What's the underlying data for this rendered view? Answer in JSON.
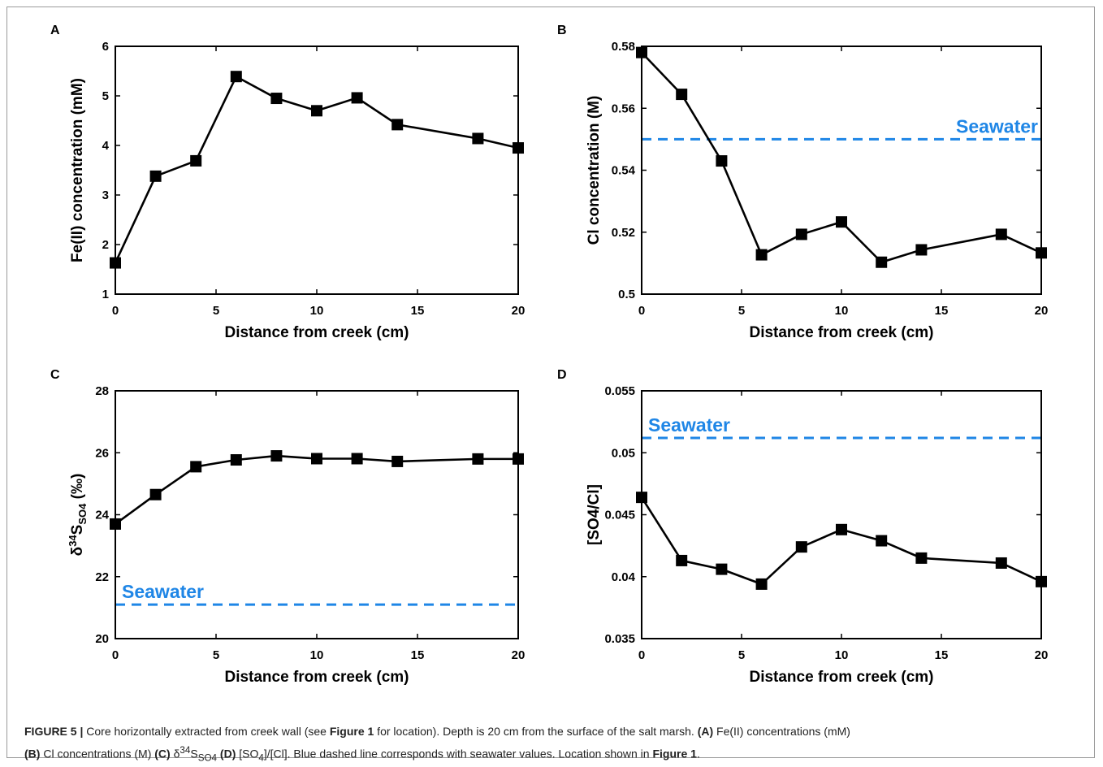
{
  "chart_data": [
    {
      "type": "line",
      "panel_label": "A",
      "xlabel": "Distance from creek (cm)",
      "ylabel": "Fe(II) concentration (mM)",
      "xlim": [
        0,
        20
      ],
      "ylim": [
        1,
        6
      ],
      "xticks": [
        0,
        5,
        10,
        15,
        20
      ],
      "xtick_labels": [
        "0",
        "5",
        "10",
        "15",
        "20"
      ],
      "yticks": [
        1,
        2,
        3,
        4,
        5,
        6
      ],
      "ytick_labels": [
        "1",
        "2",
        "3",
        "4",
        "5",
        "6"
      ],
      "x": [
        0,
        2,
        4,
        6,
        8,
        10,
        12,
        14,
        18,
        20
      ],
      "series": [
        {
          "values": [
            1.63,
            3.38,
            3.69,
            5.39,
            4.95,
            4.7,
            4.96,
            4.42,
            4.14,
            3.95
          ]
        }
      ],
      "reference": null
    },
    {
      "type": "line",
      "panel_label": "B",
      "xlabel": "Distance from creek (cm)",
      "ylabel": "Cl concentration (M)",
      "xlim": [
        0,
        20
      ],
      "ylim": [
        0.5,
        0.58
      ],
      "xticks": [
        0,
        5,
        10,
        15,
        20
      ],
      "xtick_labels": [
        "0",
        "5",
        "10",
        "15",
        "20"
      ],
      "yticks": [
        0.5,
        0.52,
        0.54,
        0.56,
        0.58
      ],
      "ytick_labels": [
        "0.5",
        "0.52",
        "0.54",
        "0.56",
        "0.58"
      ],
      "x": [
        0,
        2,
        4,
        6,
        8,
        10,
        12,
        14,
        18,
        20
      ],
      "series": [
        {
          "values": [
            0.578,
            0.5645,
            0.543,
            0.5127,
            0.5193,
            0.5233,
            0.5103,
            0.5143,
            0.5193,
            0.5133
          ]
        }
      ],
      "reference": {
        "label": "Seawater",
        "value": 0.55,
        "label_anchor": "end"
      }
    },
    {
      "type": "line",
      "panel_label": "C",
      "xlabel": "Distance from creek (cm)",
      "ylabel": "δ34SSO4 (‰)",
      "ylabel_parts": {
        "prefix": "δ",
        "sup": "34",
        "main": "S",
        "sub": "SO4",
        "suffix": " (‰)"
      },
      "xlim": [
        0,
        20
      ],
      "ylim": [
        20,
        28
      ],
      "xticks": [
        0,
        5,
        10,
        15,
        20
      ],
      "xtick_labels": [
        "0",
        "5",
        "10",
        "15",
        "20"
      ],
      "yticks": [
        20,
        22,
        24,
        26,
        28
      ],
      "ytick_labels": [
        "20",
        "22",
        "24",
        "26",
        "28"
      ],
      "x": [
        0,
        2,
        4,
        6,
        8,
        10,
        12,
        14,
        18,
        20
      ],
      "series": [
        {
          "values": [
            23.7,
            24.65,
            25.55,
            25.77,
            25.9,
            25.81,
            25.81,
            25.72,
            25.8,
            25.8
          ]
        }
      ],
      "reference": {
        "label": "Seawater",
        "value": 21.1,
        "label_anchor": "start"
      }
    },
    {
      "type": "line",
      "panel_label": "D",
      "xlabel": "Distance from creek (cm)",
      "ylabel": "[SO4/Cl]",
      "xlim": [
        0,
        20
      ],
      "ylim": [
        0.035,
        0.055
      ],
      "xticks": [
        0,
        5,
        10,
        15,
        20
      ],
      "xtick_labels": [
        "0",
        "5",
        "10",
        "15",
        "20"
      ],
      "yticks": [
        0.035,
        0.04,
        0.045,
        0.05,
        0.055
      ],
      "ytick_labels": [
        "0.035",
        "0.04",
        "0.045",
        "0.05",
        "0.055"
      ],
      "x": [
        0,
        2,
        4,
        6,
        8,
        10,
        12,
        14,
        18,
        20
      ],
      "series": [
        {
          "values": [
            0.0464,
            0.0413,
            0.0406,
            0.0394,
            0.0424,
            0.0438,
            0.0429,
            0.0415,
            0.0411,
            0.0396
          ]
        }
      ],
      "reference": {
        "label": "Seawater",
        "value": 0.0512,
        "label_anchor": "start"
      }
    }
  ],
  "colors": {
    "series": "#000000",
    "reference": "#1f86e6"
  },
  "caption": {
    "figure_label": "FIGURE 5 |",
    "line1_a": " Core horizontally extracted from creek wall (see ",
    "fig_ref_1": "Figure 1",
    "line1_b": " for location). Depth is 20 cm from the surface of the salt marsh. ",
    "tag_a": "(A)",
    "line1_c": " Fe(II) concentrations (mM)",
    "tag_b": "(B)",
    "line2_a": " Cl concentrations (M) ",
    "tag_c": "(C)",
    "delta": " δ",
    "delta_sup": "34",
    "delta_s": "S",
    "delta_sub": "SO4",
    "tag_d": "(D)",
    "so4_open": " [SO",
    "so4_sub": "4",
    "so4_close": "]/[Cl]. Blue dashed line corresponds with seawater values. Location shown in ",
    "fig_ref_2": "Figure 1",
    "end": "."
  }
}
